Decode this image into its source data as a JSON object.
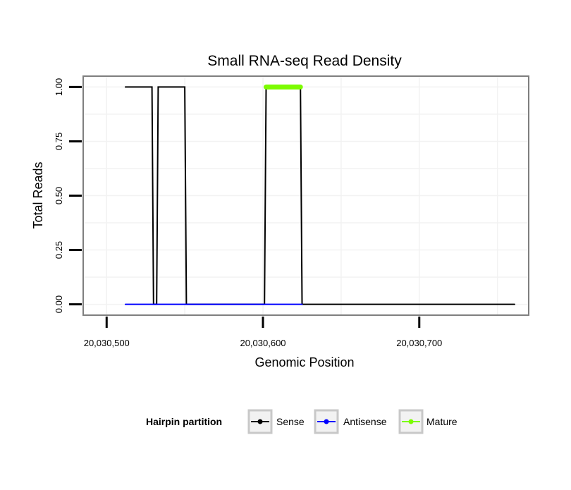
{
  "chart_data": {
    "type": "line",
    "title": "Small RNA-seq Read Density",
    "xlabel": "Genomic Position",
    "ylabel": "Total Reads",
    "xlim": [
      20030485,
      20030770
    ],
    "ylim": [
      -0.05,
      1.05
    ],
    "x_ticks": [
      20030500,
      20030600,
      20030700
    ],
    "x_tick_labels": [
      "20,030,500",
      "20,030,600",
      "20,030,700"
    ],
    "y_ticks": [
      0,
      0.25,
      0.5,
      0.75,
      1.0
    ],
    "y_tick_labels": [
      "0.00",
      "0.25",
      "0.50",
      "0.75",
      "1.00"
    ],
    "grid": true,
    "legend_position": "bottom",
    "legend_title": "Hairpin partition",
    "series": [
      {
        "name": "Sense",
        "color": "#000000",
        "line_width": 2,
        "x": [
          20030512,
          20030529,
          20030530,
          20030532,
          20030533,
          20030550,
          20030551,
          20030601,
          20030602,
          20030624,
          20030625,
          20030761
        ],
        "y": [
          1,
          1,
          0,
          0,
          1,
          1,
          0,
          0,
          1,
          1,
          0,
          0
        ]
      },
      {
        "name": "Antisense",
        "color": "#0000ff",
        "line_width": 2,
        "x": [
          20030512,
          20030625
        ],
        "y": [
          0,
          0
        ]
      },
      {
        "name": "Mature",
        "color": "#7cfc00",
        "line_width": 7,
        "x": [
          20030602,
          20030624
        ],
        "y": [
          1,
          1
        ]
      }
    ]
  }
}
